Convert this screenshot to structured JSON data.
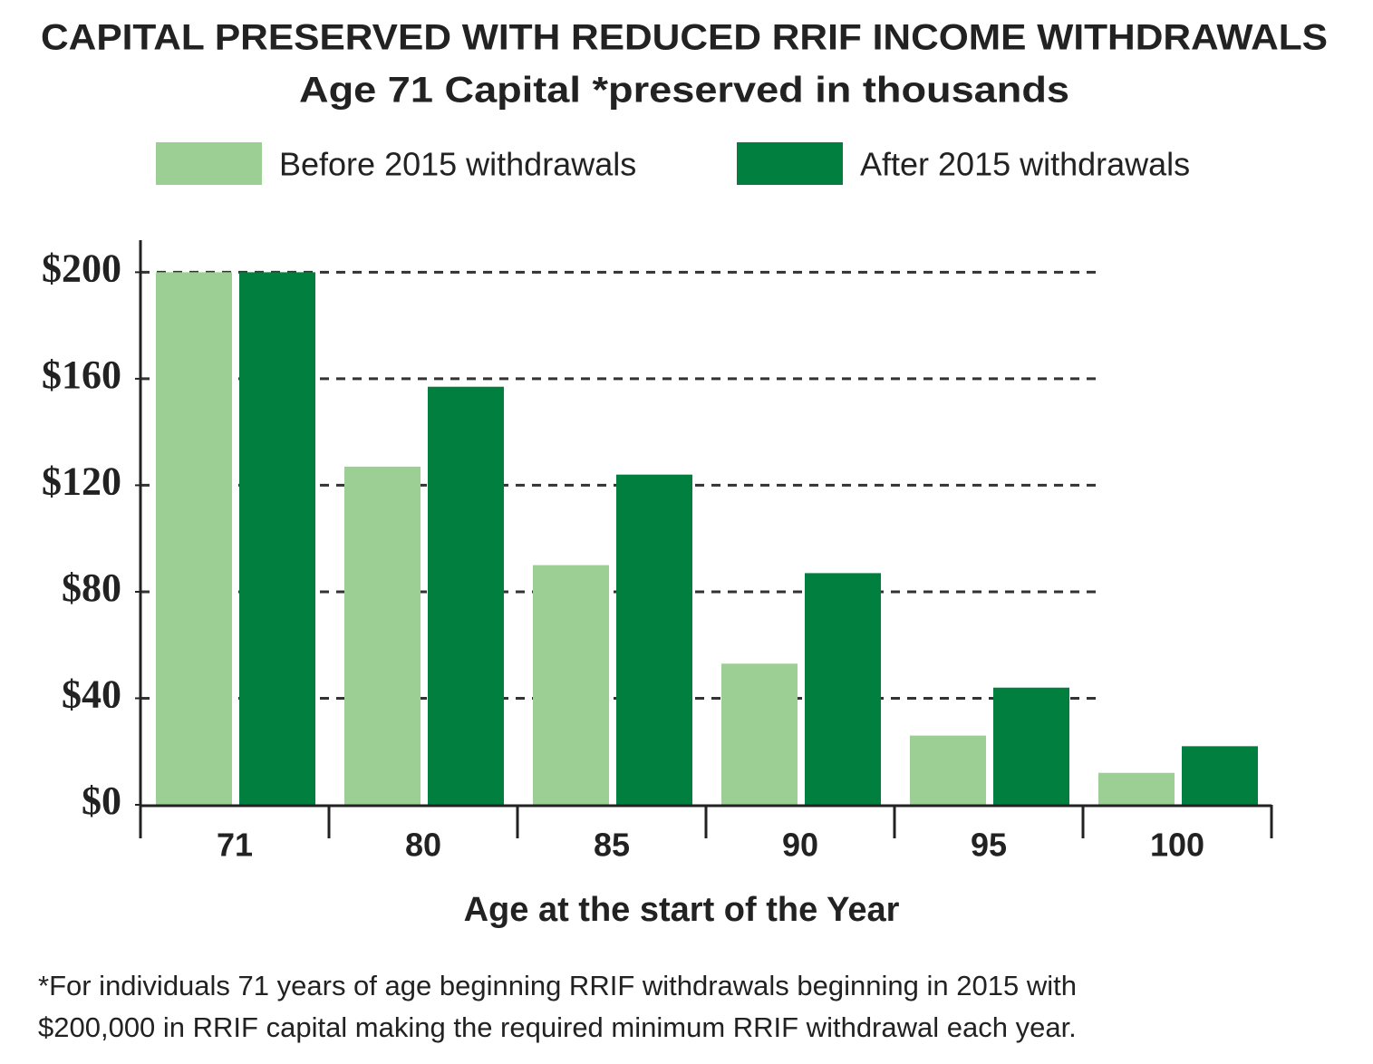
{
  "chart_data": {
    "type": "bar",
    "title": "CAPITAL PRESERVED WITH REDUCED RRIF INCOME WITHDRAWALS",
    "subtitle": "Age 71 Capital *preserved in thousands",
    "x_label": "Age at the start of the Year",
    "categories": [
      "71",
      "80",
      "85",
      "90",
      "95",
      "100"
    ],
    "series": [
      {
        "name": "Before 2015 withdrawals",
        "color": "#9ccf93",
        "values": [
          200,
          127,
          90,
          53,
          26,
          12
        ]
      },
      {
        "name": "After 2015 withdrawals",
        "color": "#007f3f",
        "values": [
          200,
          157,
          124,
          87,
          44,
          22
        ]
      }
    ],
    "ylim": [
      0,
      210
    ],
    "yticks": [
      {
        "value": 0,
        "label": "$0"
      },
      {
        "value": 40,
        "label": "$40"
      },
      {
        "value": 80,
        "label": "$80"
      },
      {
        "value": 120,
        "label": "$120"
      },
      {
        "value": 160,
        "label": "$160"
      },
      {
        "value": 200,
        "label": "$200"
      }
    ],
    "grid": true,
    "legend": "top",
    "footnote": [
      "*For individuals 71 years of age beginning RRIF withdrawals beginning in 2015 with",
      "$200,000 in RRIF capital making the required minimum RRIF withdrawal each year."
    ]
  }
}
